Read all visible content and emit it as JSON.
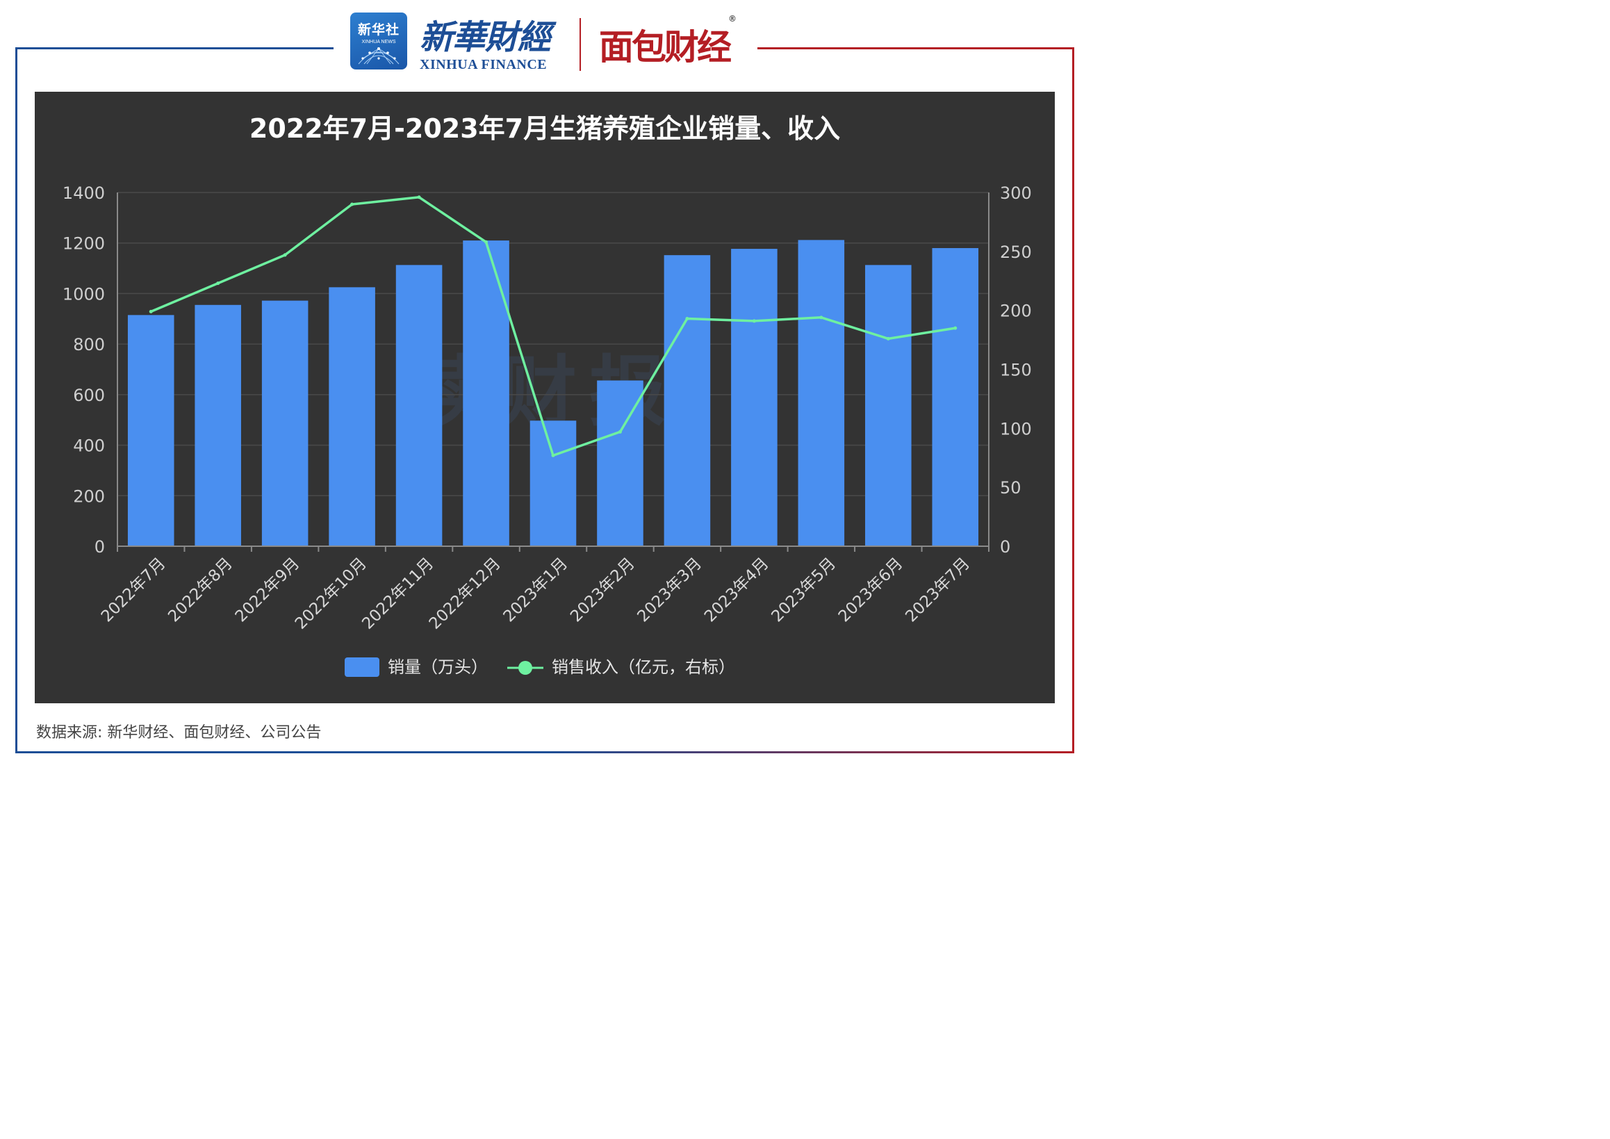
{
  "header": {
    "xinhua_badge_cn": "新华社",
    "xinhua_badge_en": "XINHUA NEWS",
    "xinhua_finance_cn": "新華財經",
    "xinhua_finance_en": "XINHUA FINANCE",
    "mianbao_name": "面包财经",
    "registered_mark": "®"
  },
  "colors": {
    "frame_left": "#1d4e96",
    "frame_right": "#b41e24",
    "panel_bg": "#333333",
    "bar": "#4a8ff0",
    "line": "#6ef0a0"
  },
  "chart_data": {
    "type": "bar",
    "title": "2022年7月-2023年7月生猪养殖企业销量、收入",
    "categories": [
      "2022年7月",
      "2022年8月",
      "2022年9月",
      "2022年10月",
      "2022年11月",
      "2022年12月",
      "2023年1月",
      "2023年2月",
      "2023年3月",
      "2023年4月",
      "2023年5月",
      "2023年6月",
      "2023年7月"
    ],
    "series": [
      {
        "name": "销量（万头）",
        "type": "bar",
        "axis": "left",
        "values": [
          915,
          955,
          972,
          1025,
          1113,
          1210,
          497,
          656,
          1152,
          1177,
          1212,
          1113,
          1180
        ]
      },
      {
        "name": "销售收入（亿元，右标）",
        "type": "line",
        "axis": "right",
        "values": [
          199,
          223,
          247,
          290,
          296,
          258,
          77,
          97,
          193,
          191,
          194,
          176,
          185
        ]
      }
    ],
    "y_left": {
      "min": 0,
      "max": 1400,
      "ticks": [
        0,
        200,
        400,
        600,
        800,
        1000,
        1200,
        1400
      ]
    },
    "y_right": {
      "min": 0,
      "max": 300,
      "ticks": [
        0,
        50,
        100,
        150,
        200,
        250,
        300
      ]
    },
    "grid": true,
    "legend_position": "bottom-center",
    "watermark": "读财报"
  },
  "source_note": "数据来源: 新华财经、面包财经、公司公告"
}
